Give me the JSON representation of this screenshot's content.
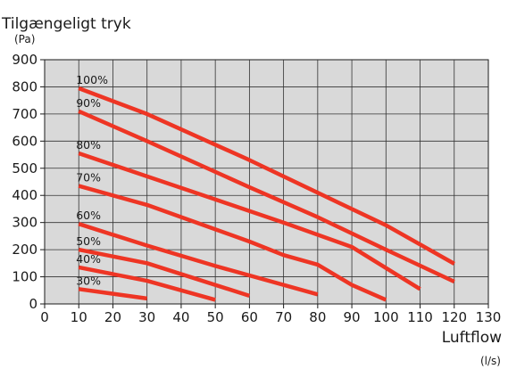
{
  "chart_data": {
    "type": "line",
    "ylabel": "Tilgængeligt tryk",
    "yunit": "(Pa)",
    "xlabel": "Luftflow",
    "xunit": "(l/s)",
    "xlim": [
      0,
      130
    ],
    "ylim": [
      0,
      900
    ],
    "xticks": [
      0,
      10,
      20,
      30,
      40,
      50,
      60,
      70,
      80,
      90,
      100,
      110,
      120,
      130
    ],
    "yticks": [
      0,
      100,
      200,
      300,
      400,
      500,
      600,
      700,
      800,
      900
    ],
    "grid": true,
    "series": [
      {
        "name": "100%",
        "x": [
          10,
          30,
          60,
          80,
          100,
          120
        ],
        "y": [
          795,
          700,
          530,
          410,
          290,
          148
        ]
      },
      {
        "name": "90%",
        "x": [
          10,
          30,
          60,
          80,
          100,
          120
        ],
        "y": [
          710,
          600,
          430,
          320,
          200,
          82
        ]
      },
      {
        "name": "80%",
        "x": [
          10,
          30,
          50,
          70,
          90,
          110
        ],
        "y": [
          555,
          470,
          385,
          300,
          210,
          55
        ]
      },
      {
        "name": "70%",
        "x": [
          10,
          30,
          60,
          70,
          80,
          90,
          100
        ],
        "y": [
          435,
          365,
          230,
          180,
          145,
          70,
          15
        ]
      },
      {
        "name": "60%",
        "x": [
          10,
          30,
          50,
          80
        ],
        "y": [
          295,
          215,
          140,
          35
        ]
      },
      {
        "name": "50%",
        "x": [
          10,
          30,
          60
        ],
        "y": [
          200,
          150,
          30
        ]
      },
      {
        "name": "40%",
        "x": [
          10,
          30,
          50
        ],
        "y": [
          135,
          85,
          15
        ]
      },
      {
        "name": "30%",
        "x": [
          10,
          30
        ],
        "y": [
          55,
          20
        ]
      }
    ]
  },
  "colors": {
    "line": "#ee3524",
    "plot_background": "#d9d9d9",
    "grid": "#333333",
    "axis": "#1a1a1a"
  }
}
